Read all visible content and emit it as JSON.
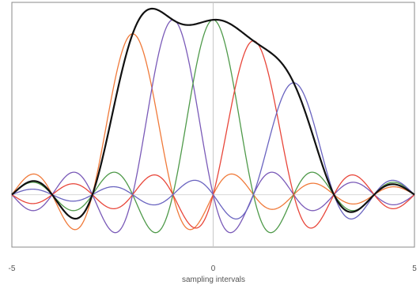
{
  "chart_data": {
    "type": "line",
    "title": "",
    "xlabel": "sampling intervals",
    "ylabel": "",
    "xlim": [
      -5,
      5
    ],
    "ylim": [
      -0.3,
      1.1
    ],
    "x_ticks": [
      {
        "value": -5,
        "label": "-5"
      },
      {
        "value": 0,
        "label": "0"
      },
      {
        "value": 5,
        "label": "5"
      }
    ],
    "grid": false,
    "legend": "none",
    "series": [
      {
        "kind": "sinc",
        "center": -2,
        "amplitude": 0.92,
        "color": "#f07a3a"
      },
      {
        "kind": "sinc",
        "center": -1,
        "amplitude": 1.0,
        "color": "#7a5ab8"
      },
      {
        "kind": "sinc",
        "center": 0,
        "amplitude": 1.0,
        "color": "#4f9a4a"
      },
      {
        "kind": "sinc",
        "center": 1,
        "amplitude": 0.88,
        "color": "#e8463a"
      },
      {
        "kind": "sinc",
        "center": 2,
        "amplitude": 0.64,
        "color": "#6a64c0"
      },
      {
        "kind": "sum",
        "color": "#111111"
      }
    ]
  }
}
